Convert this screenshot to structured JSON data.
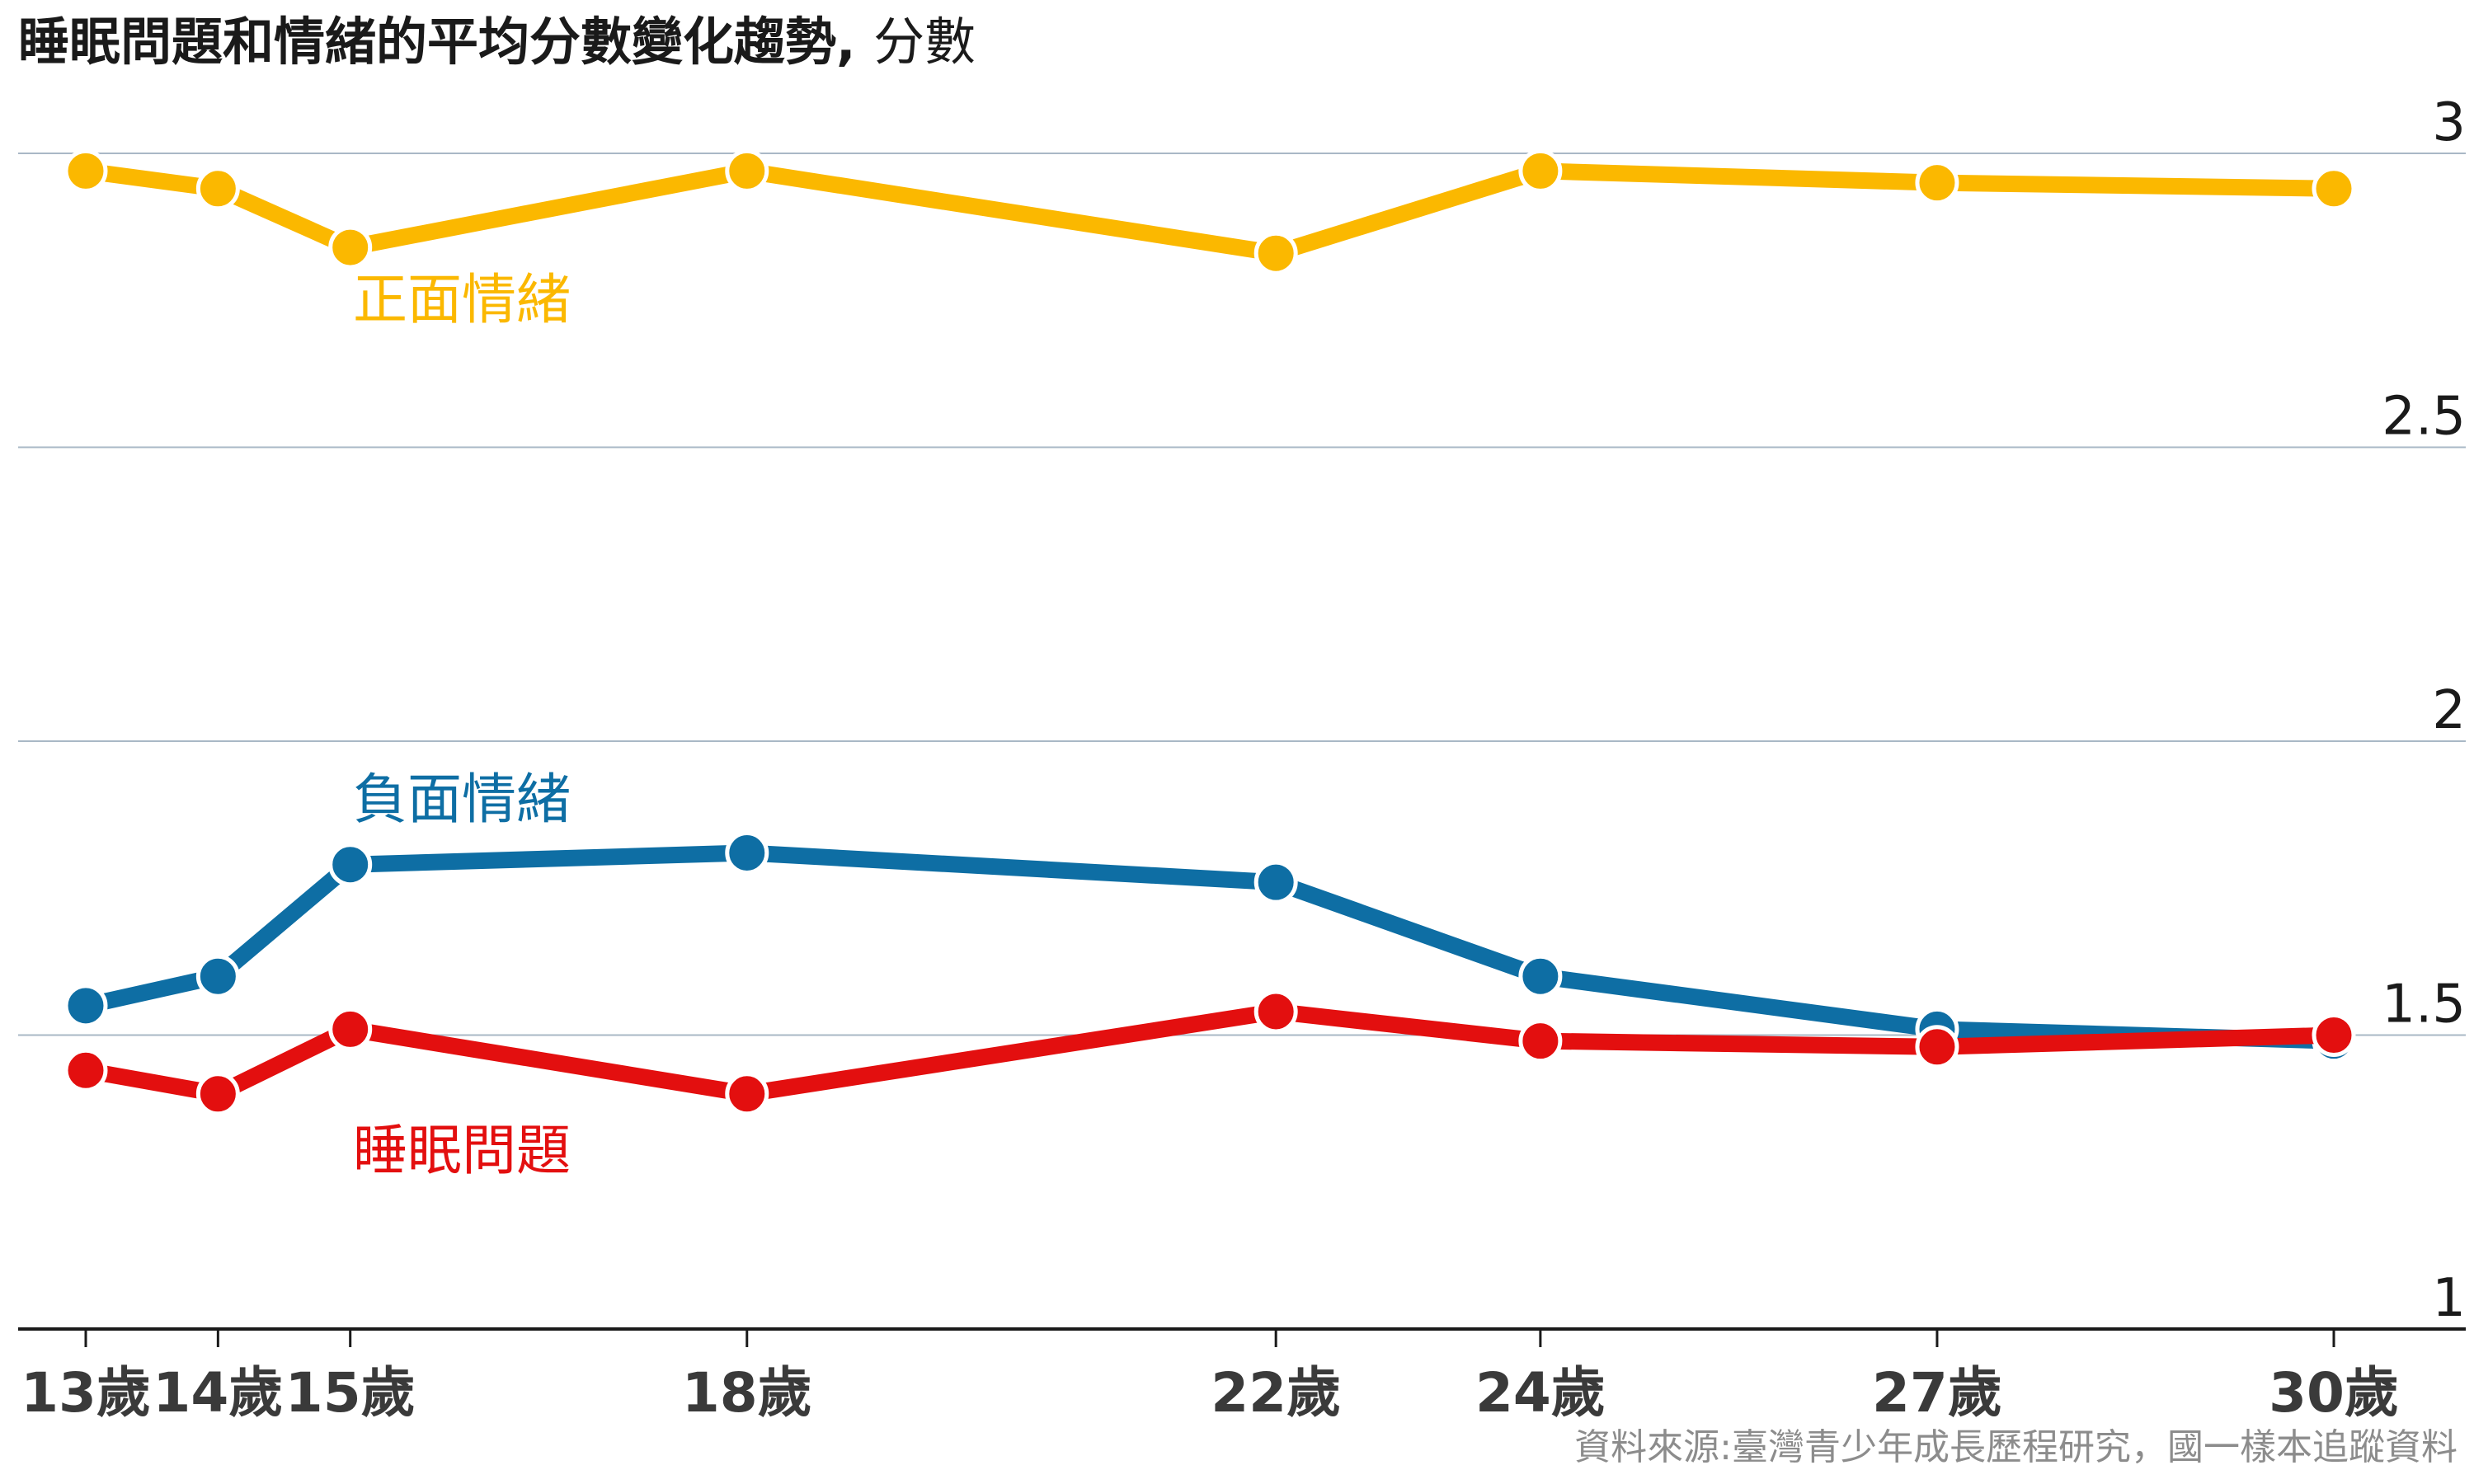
{
  "chart_data": {
    "type": "line",
    "title": "睡眠問題和情緒的平均分數變化趨勢",
    "unit": "分數",
    "source": "資料來源:臺灣青少年成長歷程研究，國一樣本追蹤資料",
    "x": [
      13,
      14,
      15,
      18,
      22,
      24,
      27,
      30
    ],
    "x_tick_labels": [
      "13歲",
      "14歲",
      "15歲",
      "18歲",
      "22歲",
      "24歲",
      "27歲",
      "30歲"
    ],
    "y_ticks": [
      1,
      1.5,
      2,
      2.5,
      3
    ],
    "y_tick_labels": [
      "1",
      "1.5",
      "2",
      "2.5",
      "3"
    ],
    "ylim": [
      1,
      3
    ],
    "grid": true,
    "y_axis_side": "right",
    "series": [
      {
        "name": "正面情緒",
        "color": "#fbb800",
        "values": [
          2.97,
          2.94,
          2.84,
          2.97,
          2.83,
          2.97,
          2.95,
          2.94
        ]
      },
      {
        "name": "負面情緒",
        "color": "#0e6ea4",
        "values": [
          1.55,
          1.6,
          1.79,
          1.81,
          1.76,
          1.6,
          1.51,
          1.49
        ]
      },
      {
        "name": "睡眠問題",
        "color": "#e30f0f",
        "values": [
          1.44,
          1.4,
          1.51,
          1.4,
          1.54,
          1.49,
          1.48,
          1.5
        ]
      }
    ]
  }
}
